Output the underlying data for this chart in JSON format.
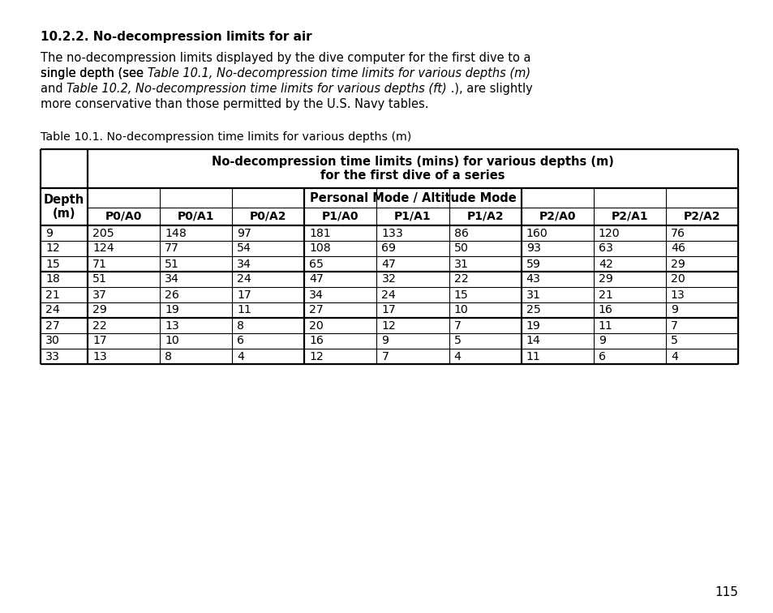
{
  "title_bold": "10.2.2. No-decompression limits for air",
  "line1": "The no-decompression limits displayed by the dive computer for the first dive to a",
  "line2_normal1": "single depth (see ",
  "line2_italic": "Table 10.1, No-decompression time limits for various depths (m)",
  "line3_normal1": "and ",
  "line3_italic": "Table 10.2, No-decompression time limits for various depths (ft)",
  "line3_normal2": " .), are slightly",
  "line4": "more conservative than those permitted by the U.S. Navy tables.",
  "table_caption": "Table 10.1. No-decompression time limits for various depths (m)",
  "header_row1_line1": "No-decompression time limits (mins) for various depths (m)",
  "header_row1_line2": "for the first dive of a series",
  "header_depth": "Depth\n(m)",
  "header_mode": "Personal Mode / Altitude Mode",
  "col_headers": [
    "P0/A0",
    "P0/A1",
    "P0/A2",
    "P1/A0",
    "P1/A1",
    "P1/A2",
    "P2/A0",
    "P2/A1",
    "P2/A2"
  ],
  "data_groups": [
    [
      [
        "9",
        "205",
        "148",
        "97",
        "181",
        "133",
        "86",
        "160",
        "120",
        "76"
      ],
      [
        "12",
        "124",
        "77",
        "54",
        "108",
        "69",
        "50",
        "93",
        "63",
        "46"
      ],
      [
        "15",
        "71",
        "51",
        "34",
        "65",
        "47",
        "31",
        "59",
        "42",
        "29"
      ]
    ],
    [
      [
        "18",
        "51",
        "34",
        "24",
        "47",
        "32",
        "22",
        "43",
        "29",
        "20"
      ],
      [
        "21",
        "37",
        "26",
        "17",
        "34",
        "24",
        "15",
        "31",
        "21",
        "13"
      ],
      [
        "24",
        "29",
        "19",
        "11",
        "27",
        "17",
        "10",
        "25",
        "16",
        "9"
      ]
    ],
    [
      [
        "27",
        "22",
        "13",
        "8",
        "20",
        "12",
        "7",
        "19",
        "11",
        "7"
      ],
      [
        "30",
        "17",
        "10",
        "6",
        "16",
        "9",
        "5",
        "14",
        "9",
        "5"
      ],
      [
        "33",
        "13",
        "8",
        "4",
        "12",
        "7",
        "4",
        "11",
        "6",
        "4"
      ]
    ]
  ],
  "page_number": "115",
  "bg_color": "#ffffff",
  "text_color": "#000000"
}
